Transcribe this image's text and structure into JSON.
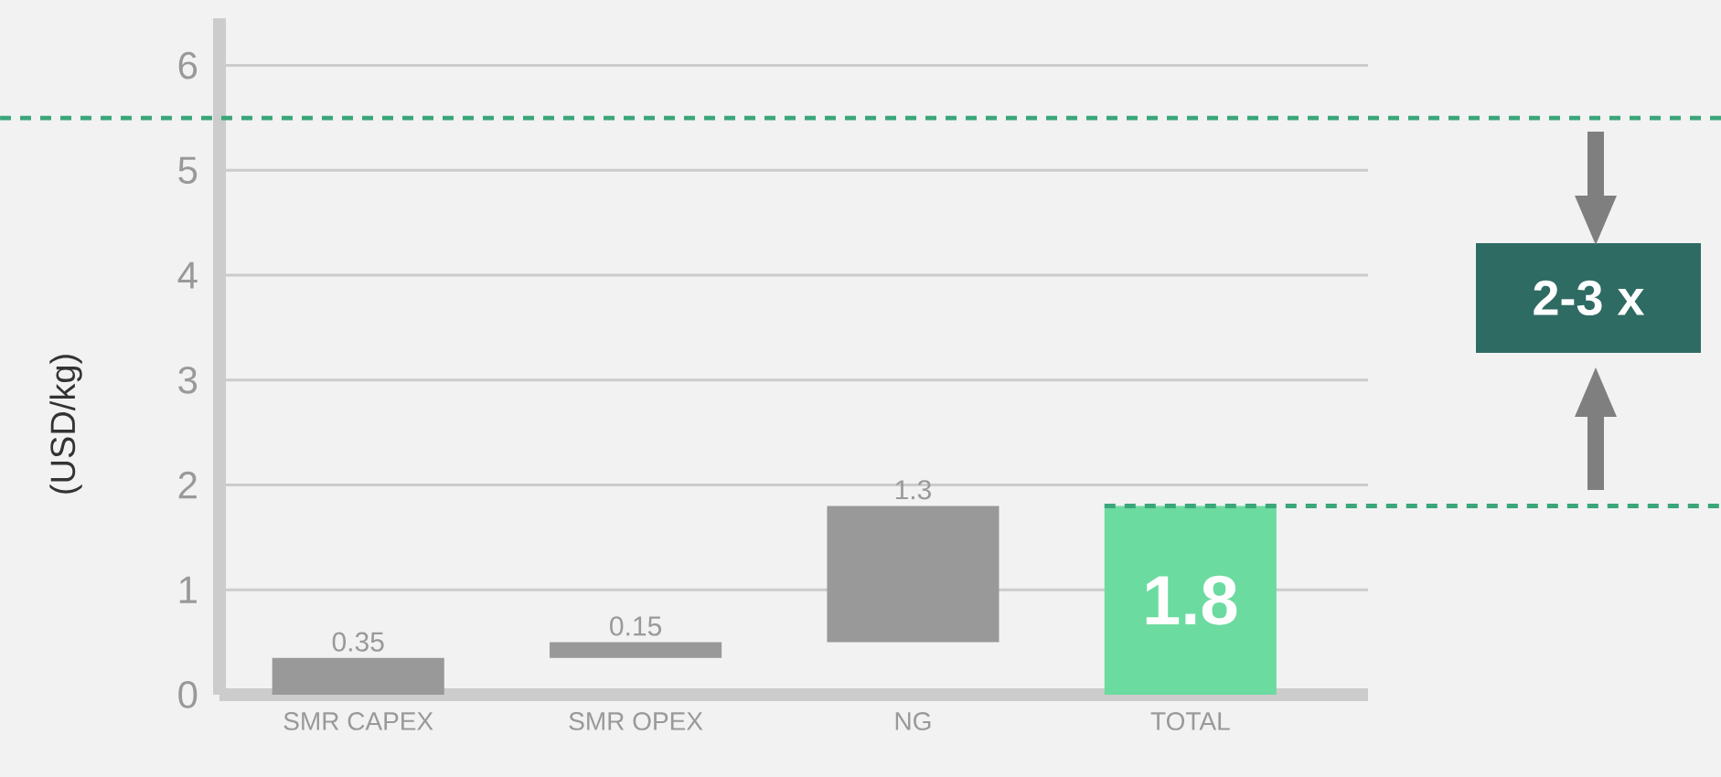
{
  "chart_data": {
    "type": "bar",
    "ylabel": "(USD/kg)",
    "categories": [
      "SMR CAPEX",
      "SMR OPEX",
      "NG",
      "TOTAL"
    ],
    "values": [
      0.35,
      0.15,
      1.3,
      1.8
    ],
    "base": [
      0,
      0.35,
      0.5,
      0
    ],
    "colors": [
      "#999999",
      "#999999",
      "#999999",
      "#6cdba0"
    ],
    "data_labels": true,
    "ylim": [
      0,
      6.45
    ],
    "yticks": [
      0,
      1,
      2,
      3,
      4,
      5,
      6
    ],
    "grid": "y",
    "ref_lines": [
      {
        "axis": "y",
        "value": 5.5,
        "color": "#3aa67a",
        "line_style": "dashed"
      },
      {
        "axis": "y",
        "value": 1.8,
        "color": "#3aa67a",
        "line_style": "dashed"
      }
    ],
    "annotations": [
      "2-3 x"
    ]
  }
}
